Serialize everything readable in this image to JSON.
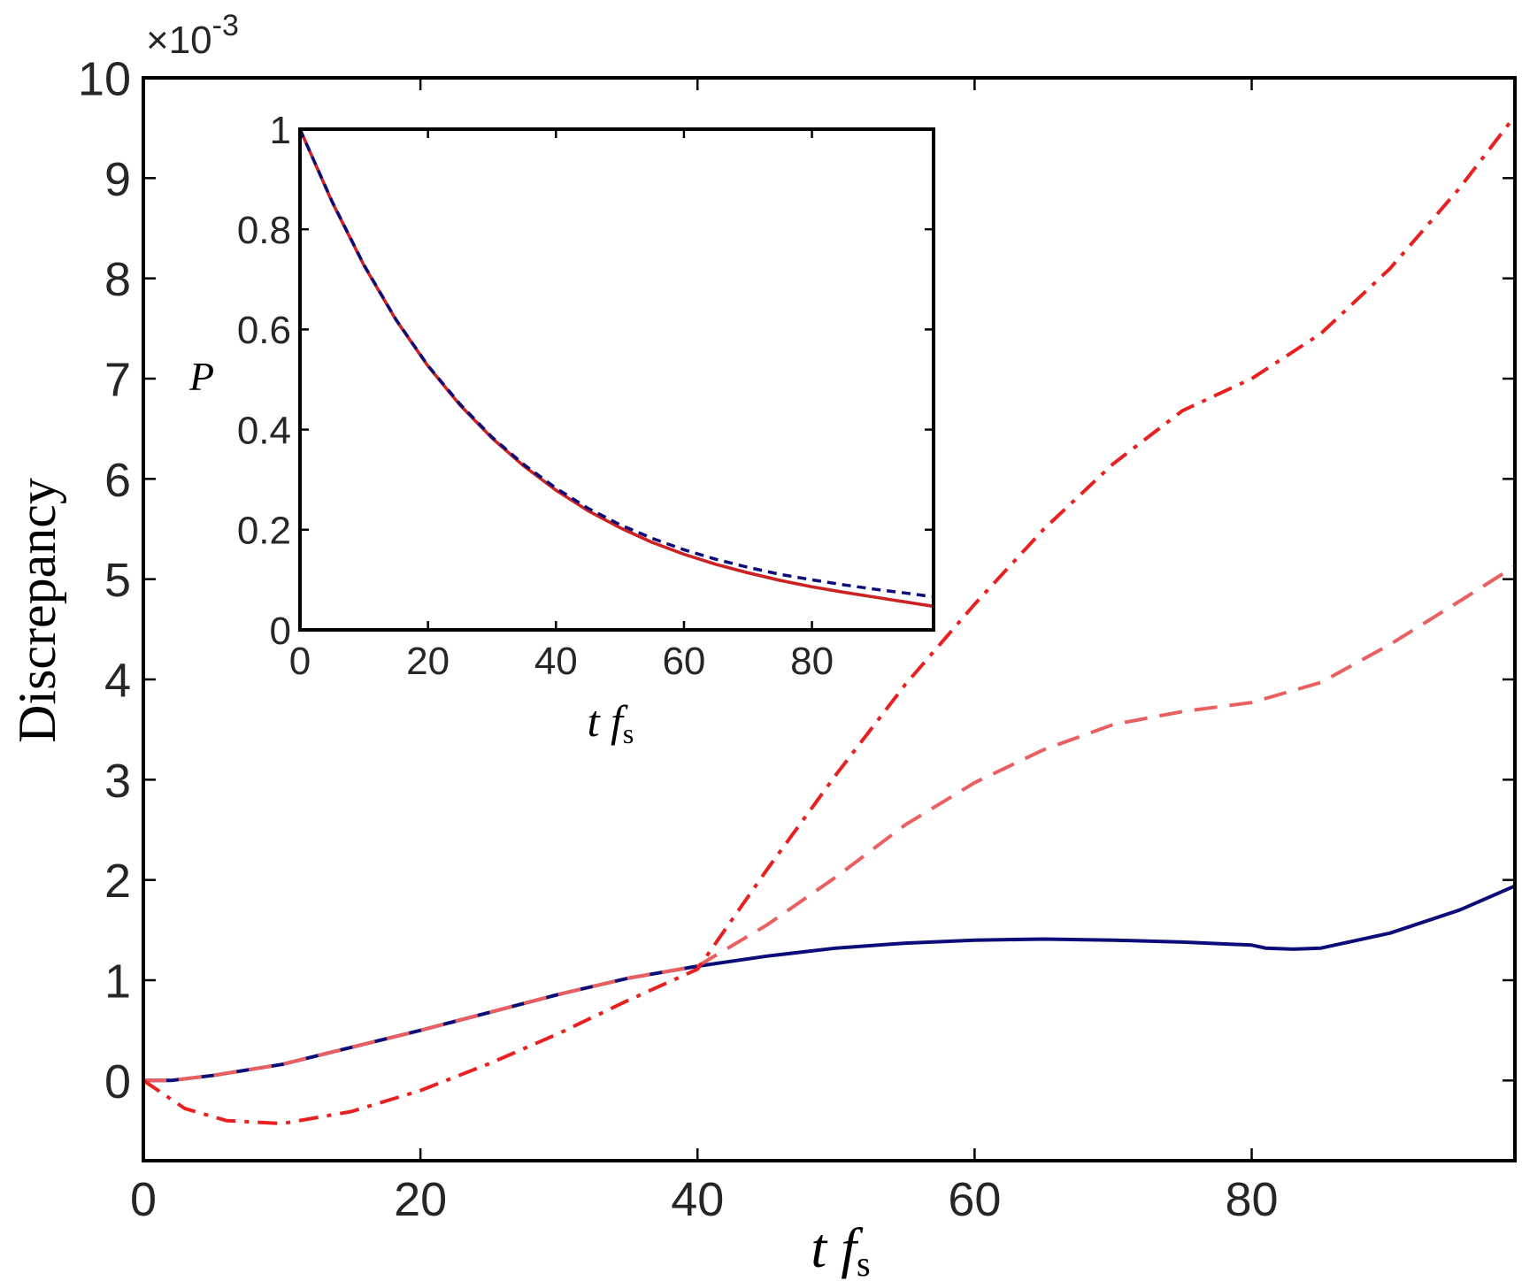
{
  "chart_data": [
    {
      "type": "line",
      "ylabel": "Discrepancy",
      "xlabel_main": "t f",
      "xlabel_sub": "s",
      "exponent_label": "×10",
      "exponent_power": "-3",
      "xlim": [
        0,
        99
      ],
      "ylim": [
        -0.8,
        10
      ],
      "xticks": [
        0,
        20,
        40,
        60,
        80
      ],
      "yticks": [
        0,
        1,
        2,
        3,
        4,
        5,
        6,
        7,
        8,
        9,
        10
      ],
      "colors": {
        "navy": "#0d0d7a",
        "red": "#e82020",
        "salmon": "#ea5f5f"
      },
      "series": [
        {
          "style": "solid",
          "color": "#0d0d7a",
          "x": [
            0,
            2,
            5,
            10,
            15,
            20,
            25,
            30,
            35,
            40,
            45,
            50,
            55,
            60,
            65,
            70,
            75,
            80,
            81,
            83,
            85,
            90,
            95,
            99
          ],
          "y": [
            0,
            0.0,
            0.05,
            0.16,
            0.33,
            0.5,
            0.68,
            0.86,
            1.02,
            1.14,
            1.24,
            1.32,
            1.37,
            1.4,
            1.41,
            1.4,
            1.38,
            1.35,
            1.32,
            1.31,
            1.32,
            1.47,
            1.7,
            1.94
          ]
        },
        {
          "style": "dashed",
          "color": "#ea5f5f",
          "x": [
            0,
            2,
            5,
            10,
            15,
            20,
            25,
            30,
            35,
            40,
            45,
            50,
            55,
            60,
            65,
            70,
            75,
            80,
            85,
            90,
            95,
            99
          ],
          "y": [
            0,
            0.0,
            0.05,
            0.16,
            0.33,
            0.5,
            0.68,
            0.86,
            1.02,
            1.14,
            1.55,
            2.03,
            2.55,
            2.97,
            3.3,
            3.55,
            3.68,
            3.77,
            3.97,
            4.35,
            4.78,
            5.13
          ]
        },
        {
          "style": "dashdot",
          "color": "#e82020",
          "x": [
            0,
            3,
            6,
            10,
            15,
            20,
            25,
            30,
            35,
            40,
            45,
            50,
            55,
            60,
            65,
            70,
            75,
            80,
            85,
            90,
            95,
            99
          ],
          "y": [
            0,
            -0.28,
            -0.4,
            -0.43,
            -0.31,
            -0.1,
            0.17,
            0.47,
            0.8,
            1.11,
            2.1,
            3.05,
            3.95,
            4.75,
            5.5,
            6.15,
            6.68,
            7.0,
            7.45,
            8.1,
            8.9,
            9.62
          ]
        }
      ]
    },
    {
      "type": "line",
      "ylabel": "P",
      "xlabel_main": "t f",
      "xlabel_sub": "s",
      "xlim": [
        0,
        99
      ],
      "ylim": [
        0,
        1
      ],
      "xticks": [
        0,
        20,
        40,
        60,
        80
      ],
      "yticks": [
        0,
        0.2,
        0.4,
        0.6,
        0.8,
        1
      ],
      "colors": {
        "navy": "#0d0d7a",
        "red": "#d02020",
        "cyan": "#4ab8e8"
      },
      "series": [
        {
          "style": "solid",
          "color": "#4ab8e8",
          "x": [
            0,
            5,
            10,
            15,
            20,
            25,
            30,
            35,
            40,
            45,
            50,
            55,
            60,
            65,
            70,
            75,
            80,
            85,
            90,
            95,
            99
          ],
          "y": [
            1.0,
            0.855,
            0.728,
            0.619,
            0.527,
            0.449,
            0.383,
            0.327,
            0.279,
            0.238,
            0.204,
            0.175,
            0.151,
            0.131,
            0.114,
            0.099,
            0.086,
            0.075,
            0.065,
            0.055,
            0.047
          ]
        },
        {
          "style": "solid",
          "color": "#d02020",
          "x": [
            0,
            5,
            10,
            15,
            20,
            25,
            30,
            35,
            40,
            45,
            50,
            55,
            60,
            65,
            70,
            75,
            80,
            85,
            90,
            95,
            99
          ],
          "y": [
            1.0,
            0.855,
            0.728,
            0.619,
            0.527,
            0.449,
            0.383,
            0.327,
            0.279,
            0.238,
            0.204,
            0.175,
            0.151,
            0.131,
            0.114,
            0.099,
            0.086,
            0.075,
            0.065,
            0.055,
            0.047
          ]
        },
        {
          "style": "dashed",
          "color": "#0d0d7a",
          "x": [
            0,
            5,
            10,
            15,
            20,
            25,
            30,
            35,
            40,
            45,
            50,
            55,
            60,
            65,
            70,
            75,
            80,
            85,
            90,
            95,
            99
          ],
          "y": [
            1.0,
            0.856,
            0.729,
            0.62,
            0.528,
            0.451,
            0.385,
            0.33,
            0.283,
            0.243,
            0.21,
            0.183,
            0.16,
            0.141,
            0.125,
            0.111,
            0.1,
            0.09,
            0.081,
            0.073,
            0.066
          ]
        }
      ]
    }
  ]
}
